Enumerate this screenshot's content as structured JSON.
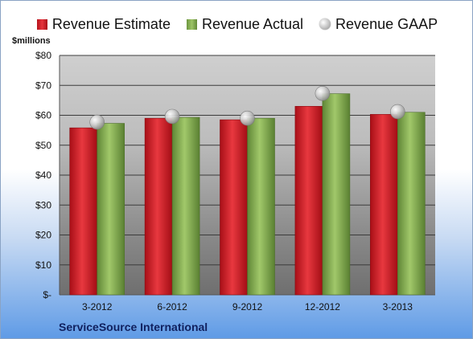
{
  "chart_data": {
    "type": "bar",
    "categories": [
      "3-2012",
      "6-2012",
      "9-2012",
      "12-2012",
      "3-2013"
    ],
    "series": [
      {
        "name": "Revenue Estimate",
        "kind": "bar",
        "color": "#d42028",
        "values": [
          55.8,
          59.0,
          58.5,
          63.0,
          60.3
        ]
      },
      {
        "name": "Revenue Actual",
        "kind": "bar",
        "color": "#8ab356",
        "values": [
          57.3,
          59.3,
          59.0,
          67.2,
          61.0
        ]
      },
      {
        "name": "Revenue GAAP",
        "kind": "marker",
        "color": "#c0c0c0",
        "values": [
          57.7,
          59.6,
          59.0,
          67.3,
          61.2
        ]
      }
    ],
    "ylim": [
      0,
      80
    ],
    "yticks": [
      0,
      10,
      20,
      30,
      40,
      50,
      60,
      70,
      80
    ],
    "ytick_labels": [
      "$-",
      "$10",
      "$20",
      "$30",
      "$40",
      "$50",
      "$60",
      "$70",
      "$80"
    ],
    "ylabel": "$millions",
    "caption": "ServiceSource International",
    "grid": true,
    "legend_position": "top"
  }
}
